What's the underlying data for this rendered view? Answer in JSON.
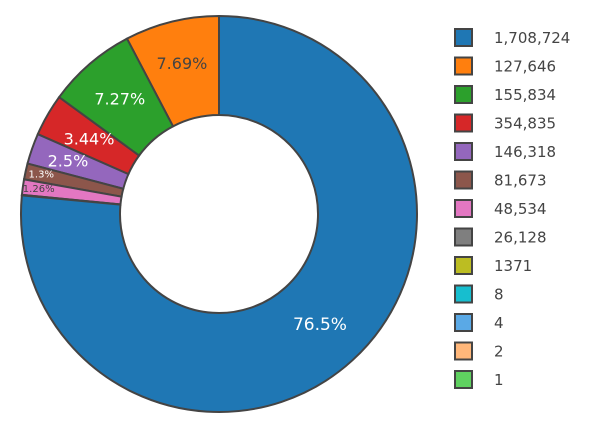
{
  "chart_data": {
    "type": "pie",
    "hole": 0.5,
    "title": "",
    "legend_position": "right",
    "slices": [
      {
        "label": "1,708,724",
        "percent": 76.5,
        "text": "76.5%",
        "color": "#1f77b4",
        "text_color": "#ffffff"
      },
      {
        "label": "127,646",
        "percent": 7.69,
        "text": "7.69%",
        "color": "#ff7f0e",
        "text_color": "#444444"
      },
      {
        "label": "155,834",
        "percent": 7.27,
        "text": "7.27%",
        "color": "#2ca02c",
        "text_color": "#ffffff"
      },
      {
        "label": "354,835",
        "percent": 3.44,
        "text": "3.44%",
        "color": "#d62728",
        "text_color": "#ffffff"
      },
      {
        "label": "146,318",
        "percent": 2.5,
        "text": "2.5%",
        "color": "#9467bd",
        "text_color": "#ffffff"
      },
      {
        "label": "81,673",
        "percent": 1.3,
        "text": "1.3%",
        "color": "#8c564b",
        "text_color": "#ffffff"
      },
      {
        "label": "48,534",
        "percent": 1.26,
        "text": "1.26%",
        "color": "#e377c2",
        "text_color": "#444444"
      },
      {
        "label": "26,128",
        "percent": 0.04,
        "text": "",
        "color": "#7f7f7f",
        "text_color": "#ffffff"
      },
      {
        "label": "1371",
        "percent": 0,
        "text": "",
        "color": "#bcbd22",
        "text_color": "#444444"
      },
      {
        "label": "8",
        "percent": 0,
        "text": "",
        "color": "#17becf",
        "text_color": "#444444"
      },
      {
        "label": "4",
        "percent": 0,
        "text": "",
        "color": "#5aa9e6",
        "text_color": "#444444"
      },
      {
        "label": "2",
        "percent": 0,
        "text": "",
        "color": "#ffb77a",
        "text_color": "#444444"
      },
      {
        "label": "1",
        "percent": 0,
        "text": "",
        "color": "#5fd160",
        "text_color": "#444444"
      }
    ]
  }
}
